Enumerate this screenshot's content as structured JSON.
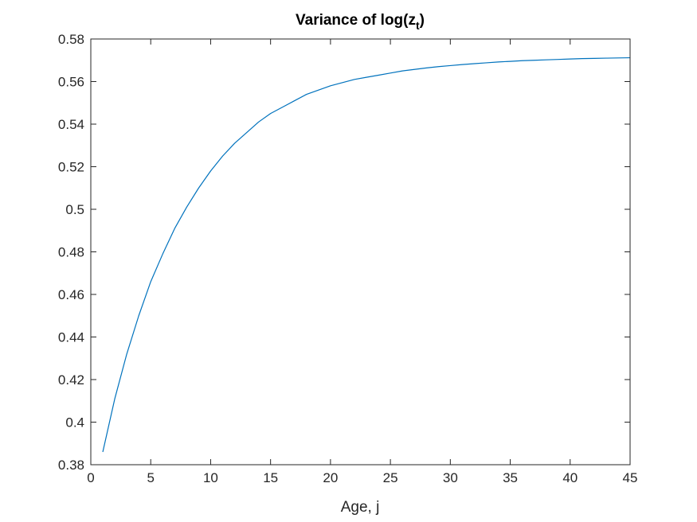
{
  "chart_data": {
    "type": "line",
    "title": "Variance of log(z",
    "title_subscript": "t",
    "title_suffix": ")",
    "xlabel": "Age, j",
    "ylabel": "",
    "xlim": [
      0,
      45
    ],
    "ylim": [
      0.38,
      0.58
    ],
    "xticks": [
      0,
      5,
      10,
      15,
      20,
      25,
      30,
      35,
      40,
      45
    ],
    "xtick_labels": [
      "0",
      "5",
      "10",
      "15",
      "20",
      "25",
      "30",
      "35",
      "40",
      "45"
    ],
    "yticks": [
      0.38,
      0.4,
      0.42,
      0.44,
      0.46,
      0.48,
      0.5,
      0.52,
      0.54,
      0.56,
      0.58
    ],
    "ytick_labels": [
      "0.38",
      "0.4",
      "0.42",
      "0.44",
      "0.46",
      "0.48",
      "0.5",
      "0.52",
      "0.54",
      "0.56",
      "0.58"
    ],
    "grid": false,
    "line_color": "#0072BD",
    "series": [
      {
        "x": [
          1,
          2,
          3,
          4,
          5,
          6,
          7,
          8,
          9,
          10,
          11,
          12,
          13,
          14,
          15,
          16,
          17,
          18,
          19,
          20,
          21,
          22,
          23,
          24,
          25,
          26,
          27,
          28,
          29,
          30,
          31,
          32,
          33,
          34,
          35,
          36,
          37,
          38,
          39,
          40,
          41,
          42,
          43,
          44,
          45
        ],
        "values": [
          0.386,
          0.411,
          0.432,
          0.45,
          0.466,
          0.479,
          0.491,
          0.501,
          0.51,
          0.518,
          0.525,
          0.531,
          0.536,
          0.541,
          0.545,
          0.548,
          0.551,
          0.554,
          0.556,
          0.558,
          0.5595,
          0.561,
          0.562,
          0.563,
          0.564,
          0.565,
          0.5657,
          0.5664,
          0.567,
          0.5675,
          0.568,
          0.5684,
          0.5688,
          0.5692,
          0.5695,
          0.5698,
          0.57,
          0.5702,
          0.5704,
          0.5706,
          0.5708,
          0.5709,
          0.571,
          0.5711,
          0.5712
        ]
      }
    ]
  }
}
